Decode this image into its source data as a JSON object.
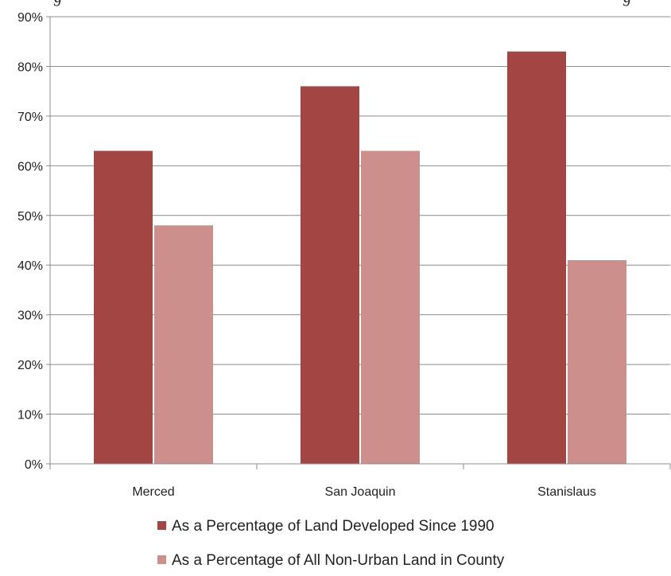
{
  "top_fragments": {
    "left": "g",
    "right": "g"
  },
  "chart_data": {
    "type": "bar",
    "categories": [
      "Merced",
      "San Joaquin",
      "Stanislaus"
    ],
    "series": [
      {
        "name": "As a Percentage of Land Developed Since 1990",
        "values": [
          63,
          76,
          83
        ],
        "color": "#a34543"
      },
      {
        "name": "As a Percentage of All Non-Urban Land in County",
        "values": [
          48,
          63,
          41
        ],
        "color": "#cc8f8c"
      }
    ],
    "ylim": [
      0,
      90
    ],
    "yticks": [
      "0%",
      "10%",
      "20%",
      "30%",
      "40%",
      "50%",
      "60%",
      "70%",
      "80%",
      "90%"
    ],
    "title": "",
    "xlabel": "",
    "ylabel": "",
    "grid": true,
    "legend_position": "bottom"
  }
}
